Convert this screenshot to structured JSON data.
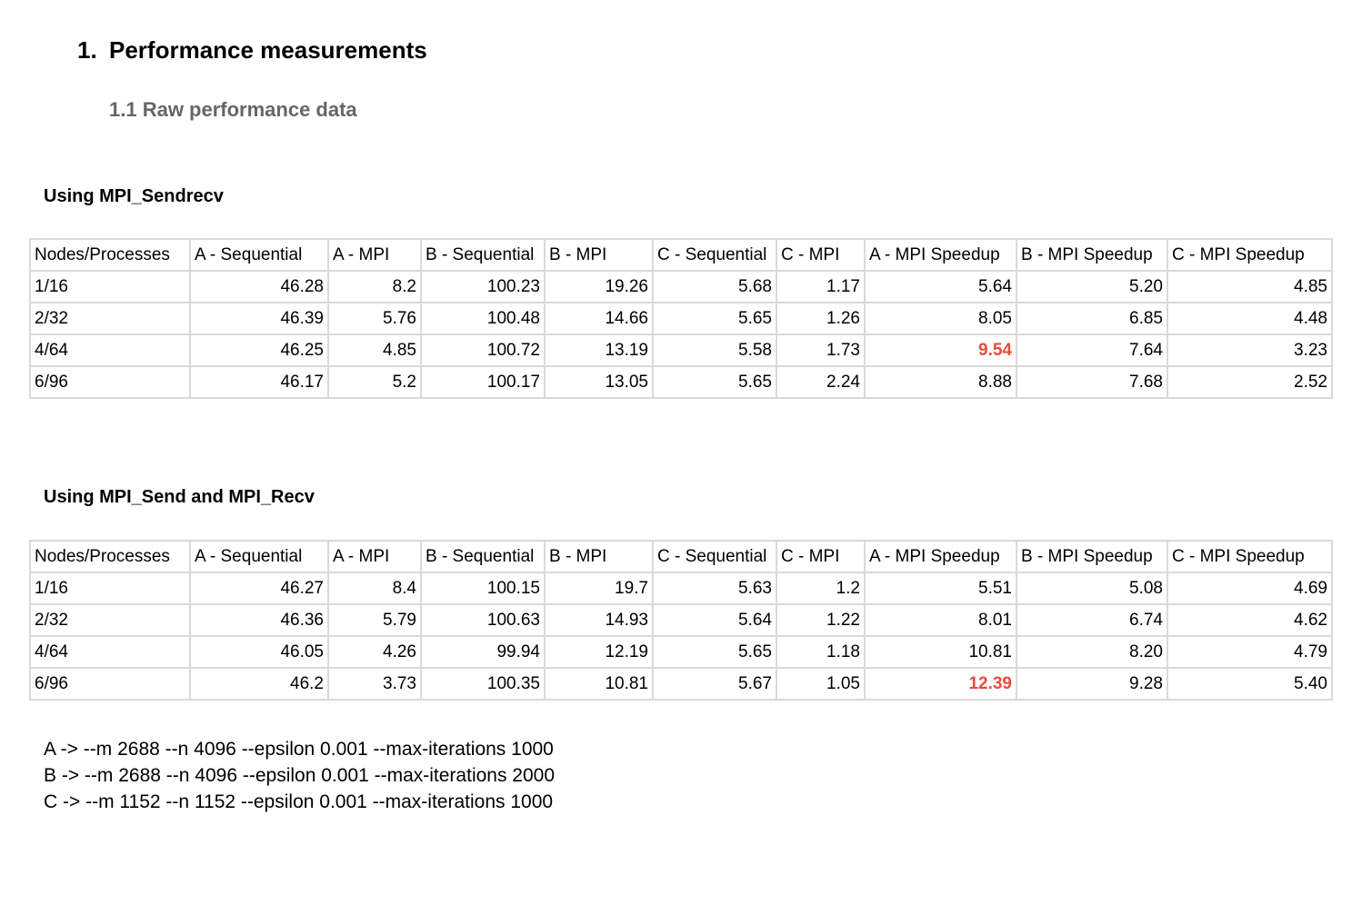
{
  "heading": {
    "number": "1.",
    "title": "Performance measurements"
  },
  "subheading": "1.1 Raw performance data",
  "columns": [
    "Nodes/Processes",
    "A - Sequential",
    "A - MPI",
    "B - Sequential",
    "B - MPI",
    "C - Sequential",
    "C - MPI",
    "A - MPI Speedup",
    "B - MPI Speedup",
    "C - MPI Speedup"
  ],
  "highlight_color": "#e84c3d",
  "tables": [
    {
      "caption": "Using MPI_Sendrecv",
      "rows": [
        {
          "cells": [
            "1/16",
            "46.28",
            "8.2",
            "100.23",
            "19.26",
            "5.68",
            "1.17",
            "5.64",
            "5.20",
            "4.85"
          ],
          "highlight": -1
        },
        {
          "cells": [
            "2/32",
            "46.39",
            "5.76",
            "100.48",
            "14.66",
            "5.65",
            "1.26",
            "8.05",
            "6.85",
            "4.48"
          ],
          "highlight": -1
        },
        {
          "cells": [
            "4/64",
            "46.25",
            "4.85",
            "100.72",
            "13.19",
            "5.58",
            "1.73",
            "9.54",
            "7.64",
            "3.23"
          ],
          "highlight": 7
        },
        {
          "cells": [
            "6/96",
            "46.17",
            "5.2",
            "100.17",
            "13.05",
            "5.65",
            "2.24",
            "8.88",
            "7.68",
            "2.52"
          ],
          "highlight": -1
        }
      ]
    },
    {
      "caption": "Using MPI_Send and MPI_Recv",
      "rows": [
        {
          "cells": [
            "1/16",
            "46.27",
            "8.4",
            "100.15",
            "19.7",
            "5.63",
            "1.2",
            "5.51",
            "5.08",
            "4.69"
          ],
          "highlight": -1
        },
        {
          "cells": [
            "2/32",
            "46.36",
            "5.79",
            "100.63",
            "14.93",
            "5.64",
            "1.22",
            "8.01",
            "6.74",
            "4.62"
          ],
          "highlight": -1
        },
        {
          "cells": [
            "4/64",
            "46.05",
            "4.26",
            "99.94",
            "12.19",
            "5.65",
            "1.18",
            "10.81",
            "8.20",
            "4.79"
          ],
          "highlight": -1
        },
        {
          "cells": [
            "6/96",
            "46.2",
            "3.73",
            "100.35",
            "10.81",
            "5.67",
            "1.05",
            "12.39",
            "9.28",
            "5.40"
          ],
          "highlight": 7
        }
      ]
    }
  ],
  "notes": [
    "A -> --m 2688 --n 4096 --epsilon 0.001 --max-iterations 1000",
    "B -> --m 2688 --n 4096 --epsilon 0.001 --max-iterations 2000",
    "C -> --m 1152 --n 1152 --epsilon 0.001 --max-iterations 1000"
  ]
}
